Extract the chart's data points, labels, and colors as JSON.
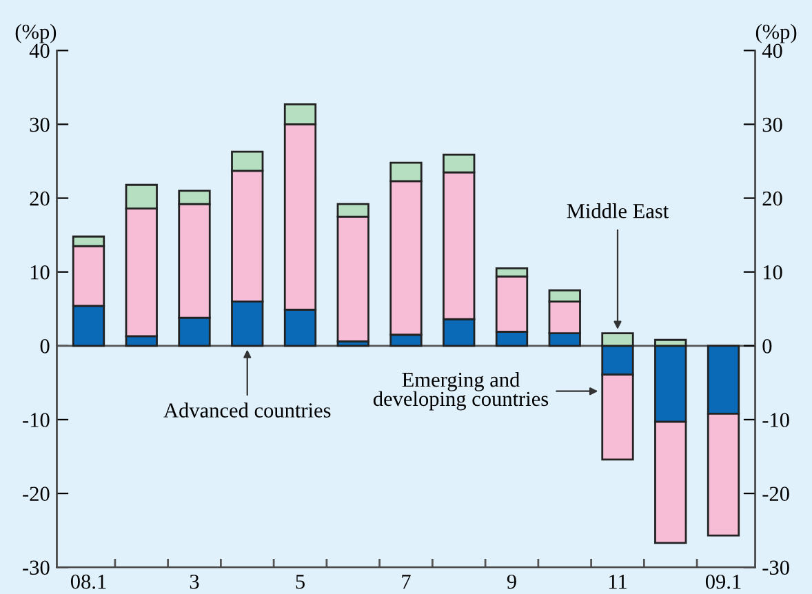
{
  "chart_data": {
    "type": "bar",
    "stacked": true,
    "ylabel": "(%p)",
    "y2label": "(%p)",
    "categories": [
      "08.1",
      null,
      "3",
      null,
      "5",
      null,
      "7",
      null,
      "9",
      null,
      "11",
      null,
      "09.1"
    ],
    "series": [
      {
        "name": "Advanced countries",
        "color": "#0a6ab8",
        "values": [
          5.4,
          1.3,
          3.8,
          6.0,
          4.9,
          0.6,
          1.5,
          3.6,
          1.9,
          1.7,
          -3.9,
          -10.3,
          -9.2
        ]
      },
      {
        "name": "Emerging and developing countries",
        "color": "#f7bdd7",
        "values": [
          8.1,
          17.3,
          15.4,
          17.7,
          25.1,
          16.9,
          20.8,
          19.9,
          7.5,
          4.3,
          -11.5,
          -16.4,
          -16.5
        ]
      },
      {
        "name": "Middle East",
        "color": "#b5dfc0",
        "values": [
          1.3,
          3.2,
          1.8,
          2.6,
          2.7,
          1.7,
          2.5,
          2.4,
          1.1,
          1.5,
          1.7,
          0.8,
          null
        ]
      }
    ],
    "ylim": [
      -30,
      40
    ],
    "yticks": [
      -30,
      -20,
      -10,
      0,
      10,
      20,
      30,
      40
    ],
    "y2lim": [
      -30,
      40
    ],
    "y2ticks": [
      -30,
      -20,
      -10,
      0,
      10,
      20,
      30,
      40
    ],
    "ref_lines": [
      {
        "axis": "y",
        "value": 0,
        "color": "#555555",
        "line_style": "solid"
      }
    ],
    "grid": false,
    "legend": false
  }
}
